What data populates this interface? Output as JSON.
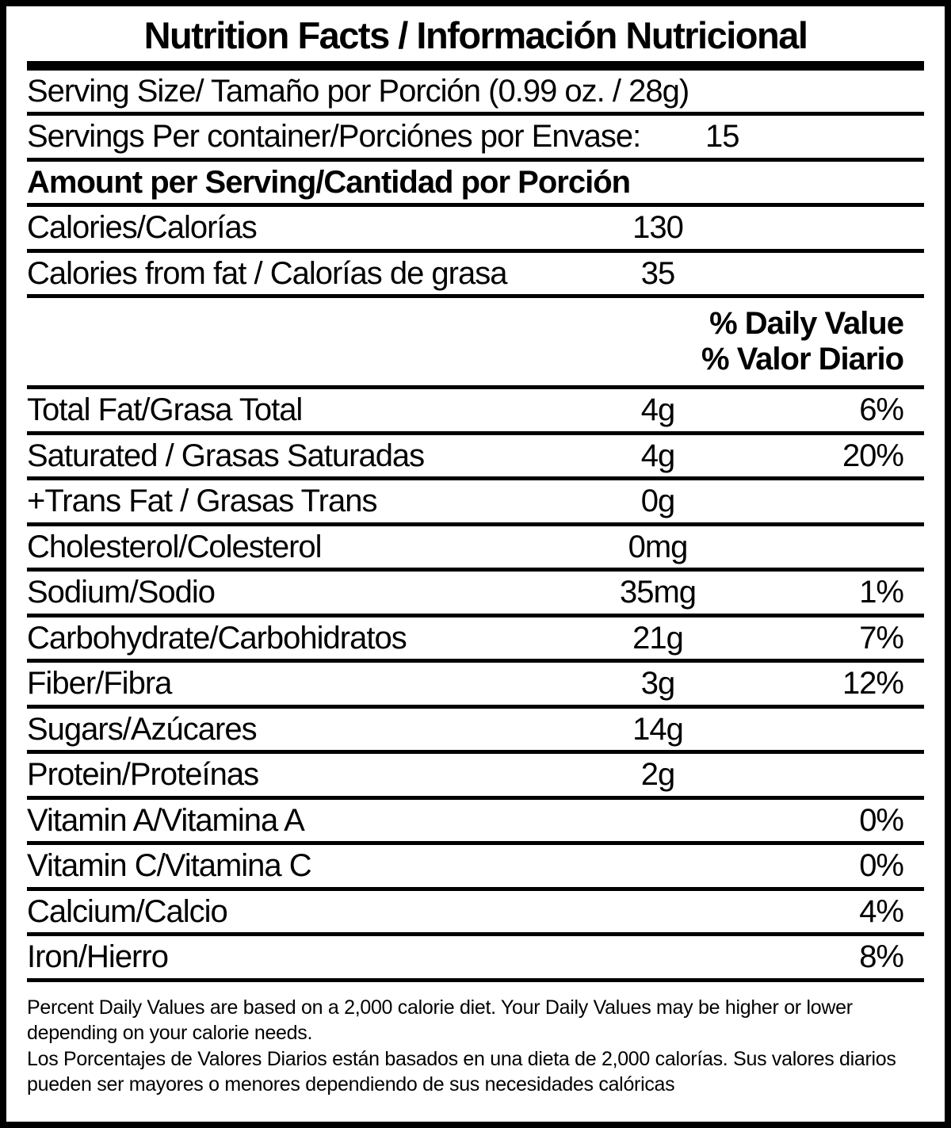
{
  "label": {
    "title": "Nutrition Facts / Información Nutricional",
    "colors": {
      "foreground": "#000000",
      "background": "#ffffff"
    },
    "daily_value_header": {
      "line1": "% Daily Value",
      "line2": "% Valor Diario"
    },
    "rows": [
      {
        "type": "item",
        "bold": false,
        "label": "Serving Size/ Tamaño por Porción  (0.99 oz. / 28g)",
        "amount": "",
        "percent": ""
      },
      {
        "type": "item",
        "bold": false,
        "label": "Servings Per container/Porciónes por Envase:",
        "amount": "15",
        "percent": ""
      },
      {
        "type": "item",
        "bold": true,
        "label": "Amount per Serving/Cantidad por Porción",
        "amount": "",
        "percent": ""
      },
      {
        "type": "item",
        "bold": false,
        "label": "Calories/Calorías",
        "amount": "130",
        "percent": ""
      },
      {
        "type": "item",
        "bold": false,
        "label": "Calories from fat / Calorías de grasa",
        "amount": "35",
        "percent": ""
      },
      {
        "type": "dv_header"
      },
      {
        "type": "item",
        "bold": false,
        "label": "Total Fat/Grasa Total",
        "amount": "4g",
        "percent": "6%"
      },
      {
        "type": "item",
        "bold": false,
        "label": "Saturated / Grasas Saturadas",
        "amount": "4g",
        "percent": "20%"
      },
      {
        "type": "item",
        "bold": false,
        "label": "+Trans Fat / Grasas Trans",
        "amount": "0g",
        "percent": ""
      },
      {
        "type": "item",
        "bold": false,
        "label": "Cholesterol/Colesterol",
        "amount": "0mg",
        "percent": ""
      },
      {
        "type": "item",
        "bold": false,
        "label": "Sodium/Sodio",
        "amount": "35mg",
        "percent": "1%"
      },
      {
        "type": "item",
        "bold": false,
        "label": "Carbohydrate/Carbohidratos",
        "amount": "21g",
        "percent": "7%"
      },
      {
        "type": "item",
        "bold": false,
        "label": "Fiber/Fibra",
        "amount": "3g",
        "percent": "12%"
      },
      {
        "type": "item",
        "bold": false,
        "label": "Sugars/Azúcares",
        "amount": "14g",
        "percent": ""
      },
      {
        "type": "item",
        "bold": false,
        "label": "Protein/Proteínas",
        "amount": "2g",
        "percent": ""
      },
      {
        "type": "item",
        "bold": false,
        "label": "Vitamin A/Vitamina A",
        "amount": "",
        "percent": "0%"
      },
      {
        "type": "item",
        "bold": false,
        "label": "Vitamin C/Vitamina C",
        "amount": "",
        "percent": "0%"
      },
      {
        "type": "item",
        "bold": false,
        "label": "Calcium/Calcio",
        "amount": "",
        "percent": "4%"
      },
      {
        "type": "item",
        "bold": false,
        "label": "Iron/Hierro",
        "amount": "",
        "percent": "8%"
      }
    ],
    "footnotes": {
      "english": "Percent Daily Values are based on a 2,000 calorie diet. Your Daily Values may be higher or lower depending on your calorie needs.",
      "spanish": "Los Porcentajes de Valores Diarios están basados en una dieta de 2,000 calorías. Sus valores diarios pueden ser mayores o menores dependiendo de sus necesidades calóricas"
    }
  }
}
